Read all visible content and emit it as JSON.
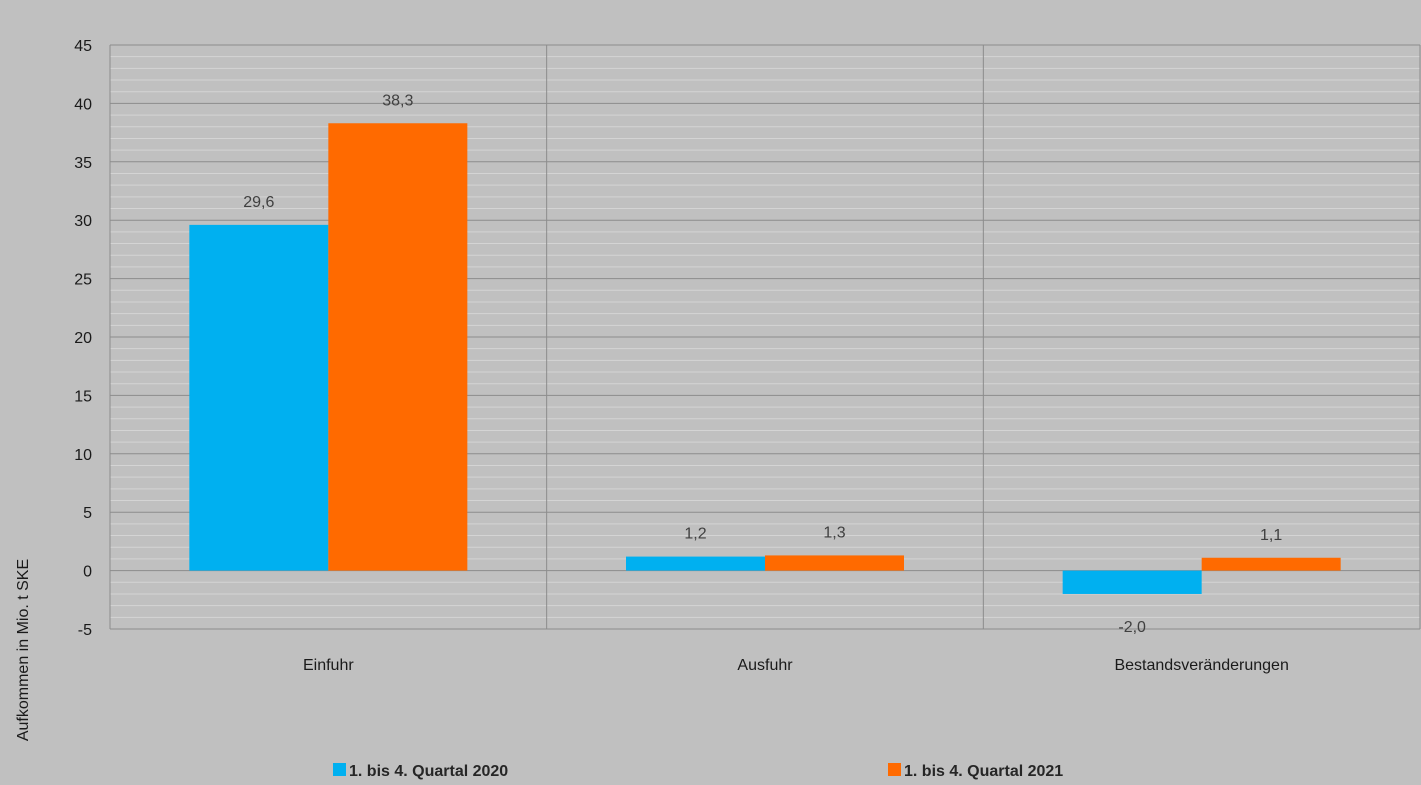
{
  "chart_data": {
    "type": "bar",
    "categories": [
      "Einfuhr",
      "Ausfuhr",
      "Bestandsveränderungen"
    ],
    "series": [
      {
        "name": "1. bis 4. Quartal 2020",
        "values": [
          29.6,
          1.2,
          -2.0
        ],
        "labels": [
          "29,6",
          "1,2",
          "-2,0"
        ],
        "color": "#00b0f0"
      },
      {
        "name": "1. bis 4. Quartal 2021",
        "values": [
          38.3,
          1.3,
          1.1
        ],
        "labels": [
          "38,3",
          "1,3",
          "1,1"
        ],
        "color": "#ff6a00"
      }
    ],
    "ylabel": "Aufkommen in Mio. t SKE",
    "ylim": [
      -5,
      45
    ],
    "yticks": [
      -5,
      0,
      5,
      10,
      15,
      20,
      25,
      30,
      35,
      40,
      45
    ],
    "grid": true,
    "legend": "bottom"
  }
}
